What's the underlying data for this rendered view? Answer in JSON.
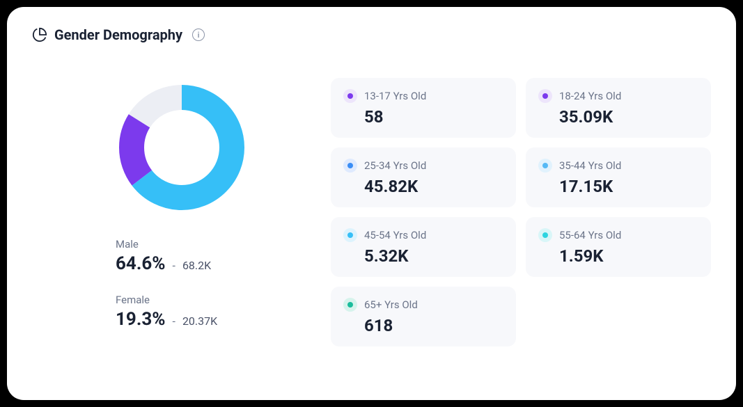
{
  "header": {
    "title": "Gender Demography"
  },
  "donut": {
    "type": "donut",
    "size": 180,
    "thickness": 36,
    "background_color": "#ffffff",
    "segments": [
      {
        "name": "male",
        "value": 64.6,
        "color": "#36bff7"
      },
      {
        "name": "female",
        "value": 19.3,
        "color": "#7c3aed"
      },
      {
        "name": "other",
        "value": 16.1,
        "color": "#eceef4"
      }
    ]
  },
  "gender_stats": [
    {
      "label": "Male",
      "percent": "64.6%",
      "count": "68.2K"
    },
    {
      "label": "Female",
      "percent": "19.3%",
      "count": "20.37K"
    }
  ],
  "age_groups": [
    {
      "label": "13-17 Yrs Old",
      "value": "58",
      "dot_color": "#7c3aed",
      "dot_bg": "#ede5fb"
    },
    {
      "label": "18-24 Yrs Old",
      "value": "35.09K",
      "dot_color": "#7c3aed",
      "dot_bg": "#ede5fb"
    },
    {
      "label": "25-34 Yrs Old",
      "value": "45.82K",
      "dot_color": "#3a8df5",
      "dot_bg": "#dfeafe"
    },
    {
      "label": "35-44 Yrs Old",
      "value": "17.15K",
      "dot_color": "#55b9f5",
      "dot_bg": "#e1f2fd"
    },
    {
      "label": "45-54 Yrs Old",
      "value": "5.32K",
      "dot_color": "#36bff7",
      "dot_bg": "#ddf3fd"
    },
    {
      "label": "55-64 Yrs Old",
      "value": "1.59K",
      "dot_color": "#2dd4e0",
      "dot_bg": "#d9f6f8"
    },
    {
      "label": "65+ Yrs Old",
      "value": "618",
      "dot_color": "#1abc9c",
      "dot_bg": "#d6f3ec"
    }
  ],
  "colors": {
    "card_bg": "#ffffff",
    "page_bg": "#000000",
    "text_primary": "#1a2233",
    "text_secondary": "#6b7489",
    "age_card_bg": "#f7f8fb"
  }
}
